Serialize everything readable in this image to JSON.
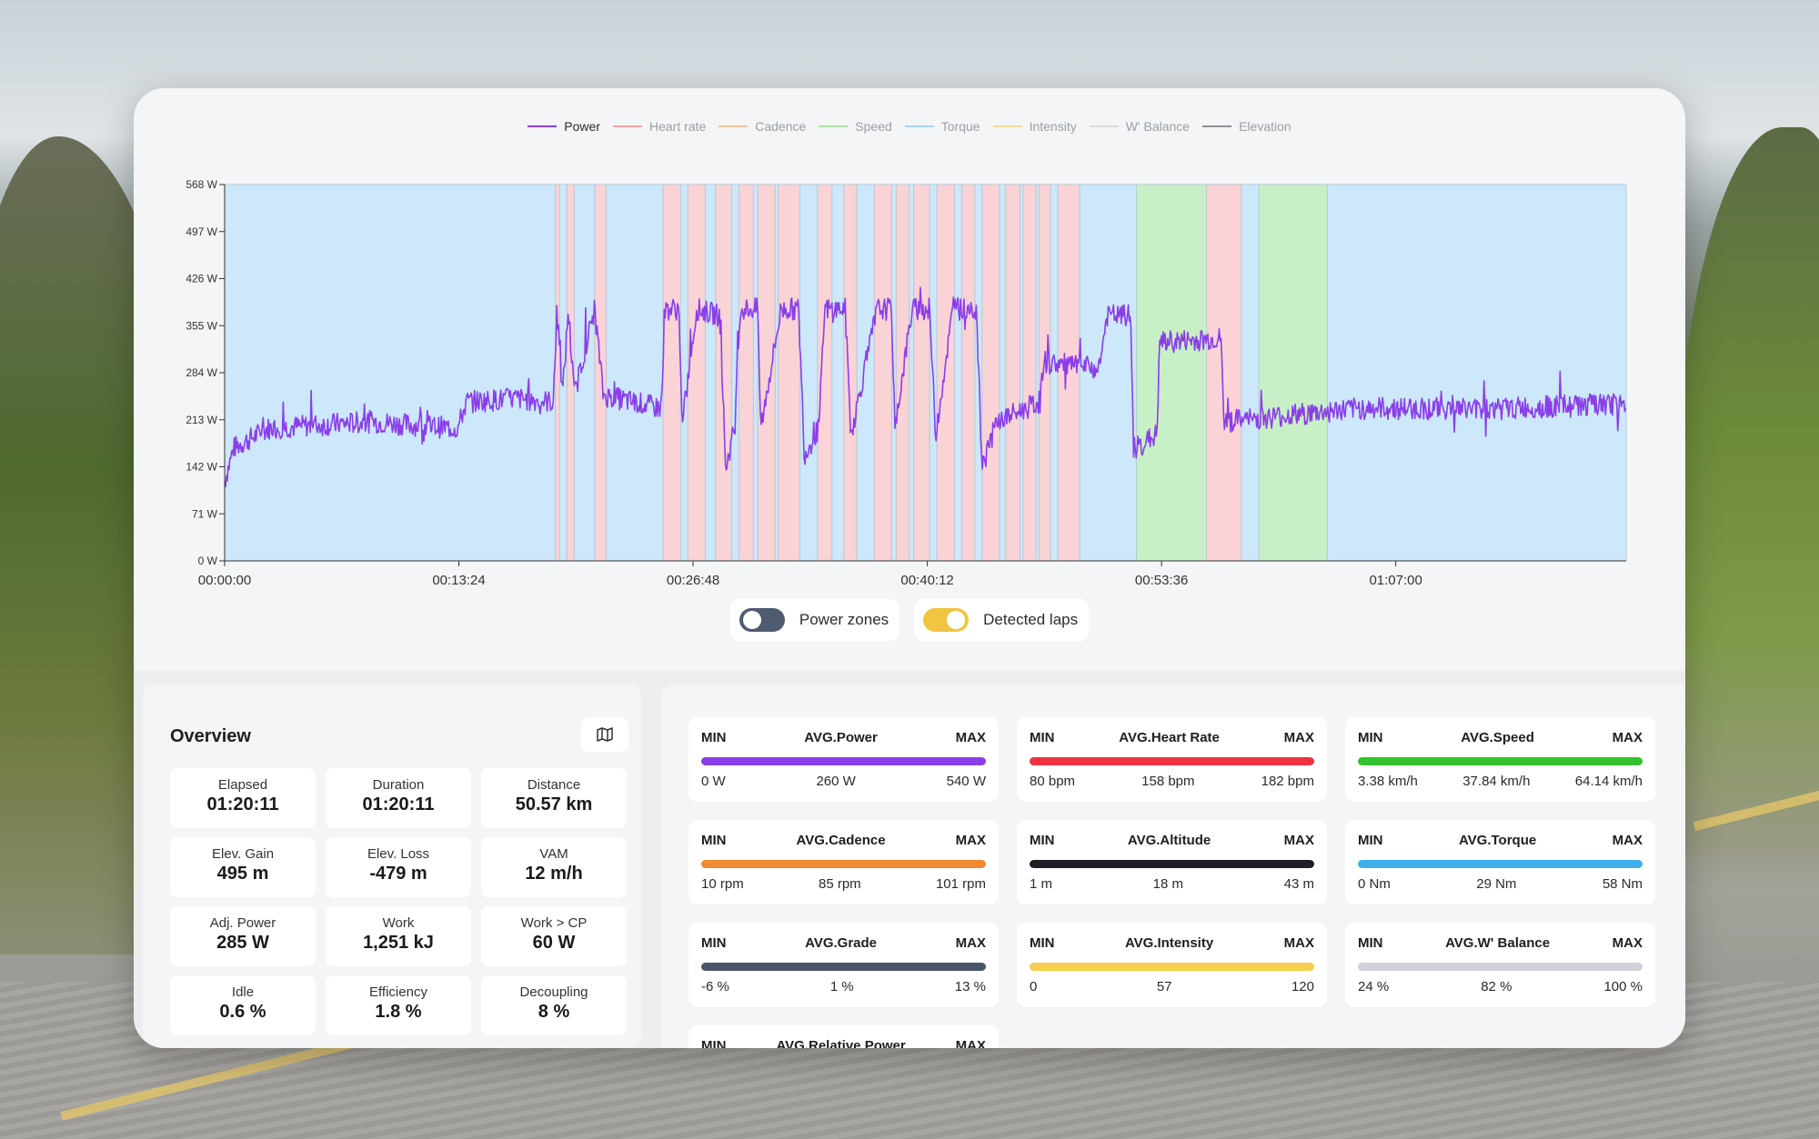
{
  "legend": [
    {
      "label": "Power",
      "color": "#8b3ee8",
      "active": true
    },
    {
      "label": "Heart rate",
      "color": "#f5a3a3",
      "active": false
    },
    {
      "label": "Cadence",
      "color": "#f6c29a",
      "active": false
    },
    {
      "label": "Speed",
      "color": "#a8e3a0",
      "active": false
    },
    {
      "label": "Torque",
      "color": "#a7d5f2",
      "active": false
    },
    {
      "label": "Intensity",
      "color": "#f5dd92",
      "active": false
    },
    {
      "label": "W' Balance",
      "color": "#d8dade",
      "active": false
    },
    {
      "label": "Elevation",
      "color": "#8a8f96",
      "active": false
    }
  ],
  "chart_data": {
    "type": "line",
    "series": [
      {
        "name": "Power",
        "color": "#8b3ee8"
      }
    ],
    "y_ticks": [
      "0 W",
      "71 W",
      "142 W",
      "213 W",
      "284 W",
      "355 W",
      "426 W",
      "497 W",
      "568 W"
    ],
    "ylim": [
      0,
      568
    ],
    "x_ticks": [
      "00:00:00",
      "00:13:24",
      "00:26:48",
      "00:40:12",
      "00:53:36",
      "01:07:00"
    ],
    "x_tick_seconds": [
      0,
      804,
      1608,
      2412,
      3216,
      4020
    ],
    "xlim_seconds": [
      0,
      4811
    ],
    "power_profile_seconds": [
      [
        0,
        120
      ],
      [
        30,
        170
      ],
      [
        150,
        200
      ],
      [
        500,
        210
      ],
      [
        800,
        200
      ],
      [
        830,
        240
      ],
      [
        1000,
        245
      ],
      [
        1130,
        240
      ],
      [
        1140,
        380
      ],
      [
        1160,
        250
      ],
      [
        1180,
        380
      ],
      [
        1200,
        250
      ],
      [
        1270,
        380
      ],
      [
        1300,
        250
      ],
      [
        1400,
        240
      ],
      [
        1500,
        230
      ],
      [
        1510,
        380
      ],
      [
        1560,
        380
      ],
      [
        1570,
        200
      ],
      [
        1620,
        380
      ],
      [
        1700,
        370
      ],
      [
        1720,
        140
      ],
      [
        1750,
        200
      ],
      [
        1770,
        380
      ],
      [
        1830,
        380
      ],
      [
        1840,
        200
      ],
      [
        1910,
        380
      ],
      [
        1970,
        380
      ],
      [
        1990,
        160
      ],
      [
        2040,
        200
      ],
      [
        2060,
        380
      ],
      [
        2130,
        380
      ],
      [
        2150,
        190
      ],
      [
        2240,
        380
      ],
      [
        2290,
        380
      ],
      [
        2300,
        200
      ],
      [
        2360,
        380
      ],
      [
        2420,
        380
      ],
      [
        2440,
        190
      ],
      [
        2500,
        380
      ],
      [
        2580,
        380
      ],
      [
        2600,
        140
      ],
      [
        2650,
        210
      ],
      [
        2800,
        240
      ],
      [
        2810,
        300
      ],
      [
        3000,
        290
      ],
      [
        3030,
        370
      ],
      [
        3110,
        370
      ],
      [
        3120,
        170
      ],
      [
        3200,
        190
      ],
      [
        3210,
        330
      ],
      [
        3420,
        335
      ],
      [
        3430,
        210
      ],
      [
        3900,
        230
      ],
      [
        4400,
        230
      ],
      [
        4680,
        235
      ],
      [
        4811,
        235
      ]
    ],
    "laps": [
      {
        "start": 0,
        "end": 1135,
        "zone": "recovery"
      },
      {
        "start": 1135,
        "end": 1150,
        "zone": "work"
      },
      {
        "start": 1150,
        "end": 1175,
        "zone": "recovery"
      },
      {
        "start": 1175,
        "end": 1200,
        "zone": "work"
      },
      {
        "start": 1200,
        "end": 1270,
        "zone": "recovery"
      },
      {
        "start": 1270,
        "end": 1310,
        "zone": "work"
      },
      {
        "start": 1310,
        "end": 1505,
        "zone": "recovery"
      },
      {
        "start": 1505,
        "end": 1565,
        "zone": "work"
      },
      {
        "start": 1565,
        "end": 1590,
        "zone": "recovery"
      },
      {
        "start": 1590,
        "end": 1650,
        "zone": "work"
      },
      {
        "start": 1650,
        "end": 1685,
        "zone": "recovery"
      },
      {
        "start": 1685,
        "end": 1740,
        "zone": "work"
      },
      {
        "start": 1740,
        "end": 1765,
        "zone": "recovery"
      },
      {
        "start": 1765,
        "end": 1815,
        "zone": "work"
      },
      {
        "start": 1815,
        "end": 1830,
        "zone": "recovery"
      },
      {
        "start": 1830,
        "end": 1890,
        "zone": "work"
      },
      {
        "start": 1890,
        "end": 1900,
        "zone": "recovery"
      },
      {
        "start": 1900,
        "end": 1975,
        "zone": "work"
      },
      {
        "start": 1975,
        "end": 2035,
        "zone": "recovery"
      },
      {
        "start": 2035,
        "end": 2085,
        "zone": "work"
      },
      {
        "start": 2085,
        "end": 2125,
        "zone": "recovery"
      },
      {
        "start": 2125,
        "end": 2170,
        "zone": "work"
      },
      {
        "start": 2170,
        "end": 2230,
        "zone": "recovery"
      },
      {
        "start": 2230,
        "end": 2290,
        "zone": "work"
      },
      {
        "start": 2290,
        "end": 2305,
        "zone": "recovery"
      },
      {
        "start": 2305,
        "end": 2350,
        "zone": "work"
      },
      {
        "start": 2350,
        "end": 2365,
        "zone": "recovery"
      },
      {
        "start": 2365,
        "end": 2420,
        "zone": "work"
      },
      {
        "start": 2420,
        "end": 2445,
        "zone": "recovery"
      },
      {
        "start": 2445,
        "end": 2505,
        "zone": "work"
      },
      {
        "start": 2505,
        "end": 2530,
        "zone": "recovery"
      },
      {
        "start": 2530,
        "end": 2575,
        "zone": "work"
      },
      {
        "start": 2575,
        "end": 2600,
        "zone": "recovery"
      },
      {
        "start": 2600,
        "end": 2660,
        "zone": "work"
      },
      {
        "start": 2660,
        "end": 2680,
        "zone": "recovery"
      },
      {
        "start": 2680,
        "end": 2730,
        "zone": "work"
      },
      {
        "start": 2730,
        "end": 2740,
        "zone": "recovery"
      },
      {
        "start": 2740,
        "end": 2785,
        "zone": "work"
      },
      {
        "start": 2785,
        "end": 2795,
        "zone": "recovery"
      },
      {
        "start": 2795,
        "end": 2835,
        "zone": "work"
      },
      {
        "start": 2835,
        "end": 2860,
        "zone": "recovery"
      },
      {
        "start": 2860,
        "end": 2935,
        "zone": "work"
      },
      {
        "start": 2935,
        "end": 3130,
        "zone": "recovery"
      },
      {
        "start": 3130,
        "end": 3370,
        "zone": "tempo"
      },
      {
        "start": 3370,
        "end": 3490,
        "zone": "work"
      },
      {
        "start": 3490,
        "end": 3550,
        "zone": "recovery"
      },
      {
        "start": 3550,
        "end": 3785,
        "zone": "tempo"
      },
      {
        "start": 3785,
        "end": 4811,
        "zone": "recovery"
      }
    ],
    "lap_colors": {
      "recovery": "#cce8fa",
      "work": "#f9d3d6",
      "tempo": "#c8f0c6"
    },
    "lap_lines": "#b7c9d4"
  },
  "toggles": {
    "power_zones": {
      "label": "Power zones",
      "on": false
    },
    "detected_laps": {
      "label": "Detected laps",
      "on": true
    }
  },
  "overview": {
    "title": "Overview",
    "map_icon": "map-icon",
    "cells": [
      {
        "label": "Elapsed",
        "value": "01:20:11"
      },
      {
        "label": "Duration",
        "value": "01:20:11"
      },
      {
        "label": "Distance",
        "value": "50.57 km"
      },
      {
        "label": "Elev. Gain",
        "value": "495 m"
      },
      {
        "label": "Elev. Loss",
        "value": "-479 m"
      },
      {
        "label": "VAM",
        "value": "12 m/h"
      },
      {
        "label": "Adj. Power",
        "value": "285 W"
      },
      {
        "label": "Work",
        "value": "1,251 kJ"
      },
      {
        "label": "Work > CP",
        "value": "60 W"
      },
      {
        "label": "Idle",
        "value": "0.6 %"
      },
      {
        "label": "Efficiency",
        "value": "1.8 %"
      },
      {
        "label": "Decoupling",
        "value": "8 %"
      }
    ]
  },
  "stats": [
    {
      "min_label": "MIN",
      "title": "AVG.Power",
      "max_label": "MAX",
      "min": "0 W",
      "avg": "260 W",
      "max": "540 W",
      "color": "#8b3ee8"
    },
    {
      "min_label": "MIN",
      "title": "AVG.Heart Rate",
      "max_label": "MAX",
      "min": "80 bpm",
      "avg": "158 bpm",
      "max": "182 bpm",
      "color": "#ec3340"
    },
    {
      "min_label": "MIN",
      "title": "AVG.Speed",
      "max_label": "MAX",
      "min": "3.38 km/h",
      "avg": "37.84 km/h",
      "max": "64.14 km/h",
      "color": "#33c22e"
    },
    {
      "min_label": "MIN",
      "title": "AVG.Cadence",
      "max_label": "MAX",
      "min": "10 rpm",
      "avg": "85 rpm",
      "max": "101 rpm",
      "color": "#f08a33"
    },
    {
      "min_label": "MIN",
      "title": "AVG.Altitude",
      "max_label": "MAX",
      "min": "1 m",
      "avg": "18 m",
      "max": "43 m",
      "color": "#1e1f26"
    },
    {
      "min_label": "MIN",
      "title": "AVG.Torque",
      "max_label": "MAX",
      "min": "0 Nm",
      "avg": "29 Nm",
      "max": "58 Nm",
      "color": "#3fb0ea"
    },
    {
      "min_label": "MIN",
      "title": "AVG.Grade",
      "max_label": "MAX",
      "min": "-6 %",
      "avg": "1 %",
      "max": "13 %",
      "color": "#4a5568"
    },
    {
      "min_label": "MIN",
      "title": "AVG.Intensity",
      "max_label": "MAX",
      "min": "0",
      "avg": "57",
      "max": "120",
      "color": "#f5cf4a"
    },
    {
      "min_label": "MIN",
      "title": "AVG.W' Balance",
      "max_label": "MAX",
      "min": "24 %",
      "avg": "82 %",
      "max": "100 %",
      "color": "#cfd2d8"
    },
    {
      "min_label": "MIN",
      "title": "AVG.Relative Power",
      "max_label": "MAX",
      "min": "",
      "avg": "",
      "max": "",
      "color": "#8b3ee8"
    }
  ]
}
